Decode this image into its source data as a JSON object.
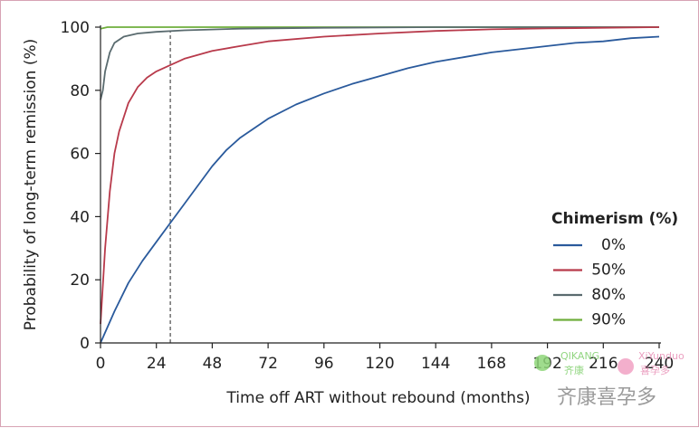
{
  "chart_data": {
    "type": "line",
    "xlabel": "Time off ART without rebound (months)",
    "ylabel": "Probability of long-term remission (%)",
    "xlim": [
      0,
      240
    ],
    "ylim": [
      0,
      100
    ],
    "xticks": [
      0,
      24,
      48,
      72,
      96,
      120,
      144,
      168,
      192,
      216,
      240
    ],
    "yticks": [
      0,
      20,
      40,
      60,
      80,
      100
    ],
    "grid": false,
    "legend": {
      "title": "Chimerism (%)",
      "placement": "right"
    },
    "reference_line": {
      "x": 30,
      "style": "dashed",
      "color": "#777777"
    },
    "series": [
      {
        "name": "0%",
        "color": "#2a5a9c",
        "points": [
          [
            0,
            0
          ],
          [
            6,
            10
          ],
          [
            12,
            19
          ],
          [
            18,
            26
          ],
          [
            24,
            32
          ],
          [
            30,
            38
          ],
          [
            36,
            44
          ],
          [
            42,
            50
          ],
          [
            48,
            56
          ],
          [
            54,
            61
          ],
          [
            60,
            65
          ],
          [
            72,
            71
          ],
          [
            84,
            75.5
          ],
          [
            96,
            79
          ],
          [
            108,
            82
          ],
          [
            120,
            84.5
          ],
          [
            132,
            87
          ],
          [
            144,
            89
          ],
          [
            156,
            90.5
          ],
          [
            168,
            92
          ],
          [
            180,
            93
          ],
          [
            192,
            94
          ],
          [
            204,
            95
          ],
          [
            216,
            95.5
          ],
          [
            228,
            96.5
          ],
          [
            240,
            97
          ]
        ]
      },
      {
        "name": "50%",
        "color": "#b83a4b",
        "points": [
          [
            0,
            6
          ],
          [
            2,
            30
          ],
          [
            4,
            48
          ],
          [
            6,
            60
          ],
          [
            8,
            67
          ],
          [
            12,
            76
          ],
          [
            16,
            81
          ],
          [
            20,
            84
          ],
          [
            24,
            86
          ],
          [
            30,
            88
          ],
          [
            36,
            90
          ],
          [
            48,
            92.5
          ],
          [
            60,
            94
          ],
          [
            72,
            95.5
          ],
          [
            96,
            97
          ],
          [
            120,
            98
          ],
          [
            144,
            98.8
          ],
          [
            168,
            99.3
          ],
          [
            192,
            99.6
          ],
          [
            216,
            99.8
          ],
          [
            240,
            100
          ]
        ]
      },
      {
        "name": "80%",
        "color": "#5a6b6f",
        "points": [
          [
            0,
            77
          ],
          [
            1,
            80
          ],
          [
            2,
            86
          ],
          [
            4,
            92
          ],
          [
            6,
            95
          ],
          [
            10,
            97
          ],
          [
            16,
            98
          ],
          [
            24,
            98.5
          ],
          [
            36,
            99
          ],
          [
            60,
            99.5
          ],
          [
            96,
            99.8
          ],
          [
            144,
            100
          ],
          [
            240,
            100
          ]
        ]
      },
      {
        "name": "90%",
        "color": "#6fae3c",
        "points": [
          [
            0,
            99.5
          ],
          [
            3,
            100
          ],
          [
            240,
            100
          ]
        ]
      }
    ]
  },
  "watermark": {
    "brand_latin": "QIKANG",
    "brand_latin_2": "XiYunduo",
    "brand_cn": "齐康喜孕多",
    "brand_cn_small_1": "齐康",
    "brand_cn_small_2": "喜孕多"
  }
}
